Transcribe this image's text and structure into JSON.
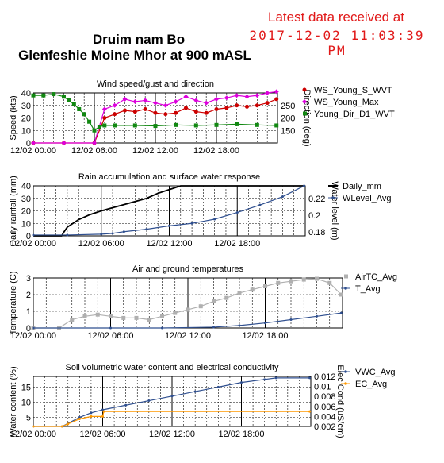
{
  "header": {
    "station_name": "Druim nam Bo",
    "station_location": "Glenfeshie Moine Mhor at 900 mASL",
    "latest_label": "Latest data received at",
    "latest_time": "2017-12-02 11:03:39 PM"
  },
  "chart_data": [
    {
      "type": "line",
      "title": "Wind speed/gust and direction",
      "ylabel": "Speed (kts)",
      "y2label": "Direction (deg)",
      "ylim": [
        0,
        40
      ],
      "y2lim": [
        100,
        300
      ],
      "yticks": [
        0,
        10,
        20,
        30,
        40
      ],
      "y2ticks": [
        150,
        200,
        250
      ],
      "xticks": [
        "12/02 00:00",
        "12/02 06:00",
        "12/02 12:00",
        "12/02 18:00"
      ],
      "series": [
        {
          "name": "WS_Young_S_WVT",
          "color": "#cc0000",
          "marker": "circle",
          "axis": "left",
          "x": [
            0.0,
            3.0,
            6.0,
            7.0,
            8.0,
            9.0,
            10.0,
            11.0,
            12.0,
            13.0,
            14.0,
            15.0,
            16.0,
            17.0,
            18.0,
            19.0,
            20.0,
            21.0,
            22.0,
            23.0,
            23.9
          ],
          "y": [
            0,
            0,
            0,
            20,
            23,
            26,
            25,
            27,
            24,
            23,
            24,
            28,
            25,
            24,
            27,
            28,
            30,
            29,
            30,
            32,
            35
          ]
        },
        {
          "name": "WS_Young_Max",
          "color": "#dd00dd",
          "marker": "diamond",
          "axis": "left",
          "x": [
            0.0,
            3.0,
            6.0,
            7.0,
            8.0,
            9.0,
            10.0,
            11.0,
            12.0,
            13.0,
            14.0,
            15.0,
            16.0,
            17.0,
            18.0,
            19.0,
            20.0,
            21.0,
            22.0,
            23.0,
            23.9
          ],
          "y": [
            0,
            0,
            0,
            27,
            30,
            35,
            33,
            34,
            32,
            30,
            33,
            37,
            34,
            32,
            35,
            36,
            38,
            37,
            38,
            40,
            41
          ]
        },
        {
          "name": "Young_Dir_D1_WVT",
          "color": "#118811",
          "marker": "square",
          "axis": "right",
          "x": [
            0.0,
            1.0,
            2.0,
            3.0,
            3.5,
            4.0,
            4.5,
            5.0,
            5.5,
            6.0,
            6.5,
            7.0,
            8.0,
            10.0,
            12.0,
            14.0,
            16.0,
            18.0,
            20.0,
            22.0,
            23.9
          ],
          "y": [
            290,
            290,
            295,
            285,
            270,
            255,
            235,
            215,
            185,
            150,
            165,
            170,
            170,
            170,
            168,
            172,
            170,
            172,
            175,
            172,
            170
          ]
        }
      ]
    },
    {
      "type": "line",
      "title": "Rain accumulation and surface water response",
      "ylabel": "Daily rainfall (mm)",
      "y2label": "Water level (m)",
      "ylim": [
        0,
        40
      ],
      "y2lim": [
        0.175,
        0.235
      ],
      "yticks": [
        0,
        10,
        20,
        30,
        40
      ],
      "y2ticks": [
        0.18,
        0.2,
        0.22
      ],
      "xticks": [
        "12/02 00:00",
        "12/02 06:00",
        "12/02 12:00",
        "12/02 18:00"
      ],
      "series": [
        {
          "name": "Daily_mm",
          "color": "#000000",
          "marker": "none",
          "axis": "left",
          "x": [
            0.0,
            2.5,
            2.7,
            3.0,
            4.0,
            5.0,
            6.0,
            8.0,
            10.0,
            11.0,
            12.0,
            13.0,
            13.5,
            24.0
          ],
          "y": [
            0,
            0,
            3,
            7,
            13,
            17,
            20,
            25,
            30,
            34,
            37,
            40,
            40,
            40
          ]
        },
        {
          "name": "WLevel_Avg",
          "color": "#2f4f8f",
          "marker": "dot",
          "axis": "right",
          "x": [
            0.0,
            3.0,
            6.0,
            7.0,
            8.0,
            10.0,
            12.0,
            14.0,
            16.0,
            18.0,
            20.0,
            22.0,
            23.9
          ],
          "y": [
            0.176,
            0.176,
            0.177,
            0.178,
            0.18,
            0.183,
            0.187,
            0.19,
            0.195,
            0.203,
            0.212,
            0.222,
            0.235
          ]
        }
      ]
    },
    {
      "type": "line",
      "title": "Air and ground temperatures",
      "ylabel": "Temperature (C)",
      "ylim": [
        0,
        3
      ],
      "yticks": [
        0,
        1,
        2,
        3
      ],
      "xticks": [
        "12/02 00:00",
        "12/02 06:00",
        "12/02 12:00",
        "12/02 18:00"
      ],
      "series": [
        {
          "name": "AirTC_Avg",
          "color": "#b0b0b0",
          "marker": "square",
          "axis": "left",
          "x": [
            0.0,
            2.0,
            3.0,
            4.0,
            5.0,
            6.0,
            7.0,
            8.0,
            9.0,
            10.0,
            11.0,
            12.0,
            13.0,
            14.0,
            15.0,
            16.0,
            17.0,
            18.0,
            19.0,
            20.0,
            21.0,
            22.0,
            23.0,
            23.9
          ],
          "y": [
            0,
            0,
            0.5,
            0.7,
            0.8,
            0.7,
            0.6,
            0.6,
            0.5,
            0.7,
            0.9,
            1.1,
            1.3,
            1.6,
            1.8,
            2.1,
            2.3,
            2.5,
            2.7,
            2.8,
            2.9,
            2.95,
            2.7,
            2.0
          ]
        },
        {
          "name": "T_Avg",
          "color": "#2f4f8f",
          "marker": "dot",
          "axis": "left",
          "x": [
            0.0,
            6.0,
            10.0,
            14.0,
            16.0,
            18.0,
            20.0,
            22.0,
            23.9
          ],
          "y": [
            0,
            0,
            0,
            0.05,
            0.15,
            0.3,
            0.5,
            0.7,
            0.9
          ]
        }
      ]
    },
    {
      "type": "line",
      "title": "Soil volumetric water content and electrical conductivity",
      "ylabel": "Water content (%)",
      "y2label": "Elec Cond (uS/cm)",
      "ylim": [
        2,
        18.5
      ],
      "y2lim": [
        0.002,
        0.012
      ],
      "yticks": [
        5,
        10,
        15
      ],
      "y2ticks": [
        0.002,
        0.004,
        0.006,
        0.008,
        0.01,
        0.012
      ],
      "xticks": [
        "12/02 00:00",
        "12/02 06:00",
        "12/02 12:00",
        "12/02 18:00"
      ],
      "series": [
        {
          "name": "VWC_Avg",
          "color": "#2f4f8f",
          "marker": "dot",
          "axis": "left",
          "x": [
            0.0,
            2.5,
            3.0,
            4.0,
            5.0,
            6.0,
            8.0,
            10.0,
            12.0,
            14.0,
            16.0,
            18.0,
            20.0,
            21.0,
            23.9
          ],
          "y": [
            2,
            2,
            3,
            5,
            6.5,
            7.5,
            9,
            10.5,
            12,
            13.5,
            15,
            16.5,
            17.5,
            18,
            18
          ]
        },
        {
          "name": "EC_Avg",
          "color": "#ff9900",
          "marker": "dot",
          "axis": "right",
          "x": [
            0.0,
            2.5,
            3.0,
            4.0,
            5.0,
            6.0,
            6.1,
            23.9
          ],
          "y": [
            0.002,
            0.002,
            0.0025,
            0.0035,
            0.004,
            0.004,
            0.005,
            0.005
          ]
        }
      ]
    }
  ]
}
